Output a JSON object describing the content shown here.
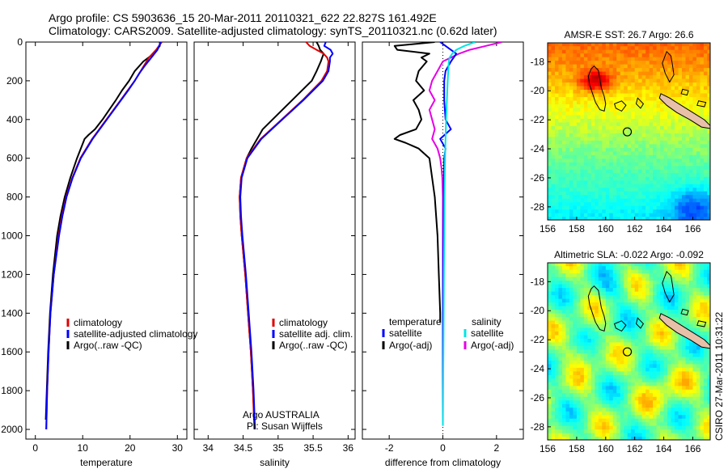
{
  "header": {
    "title_line1": "Argo profile: CS 5903636_15 20-Mar-2011 20110321_622 22.827S 161.492E",
    "title_line2": "Climatology: CARS2009. Satellite-adjusted climatology: synTS_20110321.nc (0.62d later)"
  },
  "side_label": "CSIRO 27-Mar-2011 10:31:22",
  "colors": {
    "climatology": "#dd0000",
    "satellite": "#0000ff",
    "argo": "#000000",
    "sat_salinity": "#00e5e5",
    "argo_salinity": "#e600e6",
    "island_fill": "#e8c0a8"
  },
  "chart_data": [
    {
      "type": "line",
      "name": "temperature",
      "xlabel": "temperature",
      "xlim": [
        -2,
        32
      ],
      "ylim": [
        2050,
        0
      ],
      "xticks": [
        0,
        10,
        20,
        30
      ],
      "yticks": [
        0,
        200,
        400,
        600,
        800,
        1000,
        1200,
        1400,
        1600,
        1800,
        2000
      ],
      "legend": [
        "climatology",
        "satellite-adjusted climatology",
        "Argo(..raw -QC)"
      ],
      "legend_position": "lower-right",
      "series": [
        {
          "name": "climatology",
          "color": "#dd0000",
          "y": [
            0,
            40,
            80,
            120,
            160,
            200,
            250,
            300,
            350,
            400,
            450,
            500,
            600,
            700,
            800,
            900,
            1000,
            1200,
            1400,
            1600,
            1800,
            2000
          ],
          "x": [
            26.7,
            25.5,
            24.0,
            23.0,
            22.0,
            21.0,
            19.5,
            18.0,
            16.5,
            15.0,
            13.5,
            12.0,
            9.5,
            7.8,
            6.5,
            5.6,
            4.9,
            3.9,
            3.2,
            2.8,
            2.5,
            2.3
          ]
        },
        {
          "name": "satellite-adjusted climatology",
          "color": "#0000ff",
          "y": [
            0,
            40,
            80,
            120,
            160,
            200,
            250,
            300,
            350,
            400,
            450,
            500,
            600,
            700,
            800,
            900,
            1000,
            1200,
            1400,
            1600,
            1800,
            2000
          ],
          "x": [
            26.5,
            25.8,
            24.5,
            23.2,
            22.0,
            21.0,
            19.6,
            18.1,
            16.6,
            15.1,
            13.6,
            12.1,
            9.6,
            7.9,
            6.6,
            5.7,
            5.0,
            3.9,
            3.2,
            2.8,
            2.5,
            2.3
          ]
        },
        {
          "name": "Argo(..raw -QC)",
          "color": "#000000",
          "y": [
            0,
            20,
            60,
            100,
            150,
            200,
            250,
            300,
            350,
            400,
            450,
            480,
            500,
            550,
            600,
            700,
            800,
            900,
            1000,
            1200,
            1400,
            1600,
            1800,
            1950
          ],
          "x": [
            26.3,
            26.3,
            25.0,
            22.8,
            21.0,
            19.8,
            18.3,
            17.0,
            15.6,
            14.2,
            12.6,
            11.2,
            10.4,
            9.6,
            8.8,
            7.4,
            6.2,
            5.3,
            4.6,
            3.7,
            3.1,
            2.7,
            2.4,
            2.2
          ]
        }
      ]
    },
    {
      "type": "line",
      "name": "salinity",
      "xlabel": "salinity",
      "xlim": [
        33.8,
        36.1
      ],
      "ylim": [
        2050,
        0
      ],
      "xticks": [
        34,
        34.5,
        35,
        35.5,
        36
      ],
      "legend": [
        "climatology",
        "satellite adj. clim.",
        "Argo(..raw -QC)"
      ],
      "legend_position": "lower-right",
      "annotation": [
        "Argo AUSTRALIA",
        "PI: Susan Wijffels"
      ],
      "series": [
        {
          "name": "climatology",
          "color": "#dd0000",
          "y": [
            0,
            20,
            40,
            60,
            80,
            100,
            150,
            200,
            300,
            400,
            500,
            600,
            700,
            800,
            900,
            1000,
            1200,
            1400,
            1600,
            1800,
            2000
          ],
          "x": [
            35.4,
            35.45,
            35.55,
            35.65,
            35.7,
            35.72,
            35.7,
            35.62,
            35.35,
            35.05,
            34.75,
            34.55,
            34.47,
            34.45,
            34.46,
            34.48,
            34.53,
            34.57,
            34.61,
            34.64,
            34.66
          ]
        },
        {
          "name": "satellite adj. clim.",
          "color": "#0000ff",
          "y": [
            0,
            20,
            40,
            60,
            80,
            100,
            150,
            200,
            300,
            400,
            500,
            600,
            700,
            800,
            900,
            1000,
            1200,
            1400,
            1600,
            1800,
            2000
          ],
          "x": [
            35.68,
            35.66,
            35.75,
            35.78,
            35.74,
            35.74,
            35.72,
            35.64,
            35.36,
            35.06,
            34.76,
            34.56,
            34.48,
            34.46,
            34.47,
            34.49,
            34.54,
            34.58,
            34.62,
            34.65,
            34.67
          ]
        },
        {
          "name": "Argo(..raw -QC)",
          "color": "#000000",
          "y": [
            0,
            20,
            40,
            60,
            80,
            100,
            150,
            200,
            300,
            400,
            450,
            500,
            550,
            600,
            700,
            800,
            900,
            1000,
            1200,
            1400,
            1600,
            1800,
            1950
          ],
          "x": [
            35.55,
            35.58,
            35.6,
            35.65,
            35.63,
            35.61,
            35.55,
            35.48,
            35.2,
            34.92,
            34.78,
            34.7,
            34.62,
            34.55,
            34.47,
            34.45,
            34.46,
            34.48,
            34.53,
            34.57,
            34.61,
            34.64,
            34.66
          ]
        }
      ]
    },
    {
      "type": "line",
      "name": "difference",
      "xlabel": "difference from climatology",
      "xlim": [
        -3,
        3
      ],
      "ylim": [
        2050,
        0
      ],
      "xticks": [
        -2,
        0,
        2
      ],
      "legend": [
        "temperature",
        "satellite",
        "Argo(-adj)",
        "salinity",
        "satellite",
        "Argo(-adj)"
      ],
      "legend_position": "lower-center",
      "series": [
        {
          "name": "temperature satellite",
          "color": "#0000ff",
          "y": [
            0,
            30,
            60,
            100,
            150,
            200,
            300,
            400,
            450,
            500,
            550,
            600,
            700,
            800,
            1000,
            1200,
            1400,
            1600,
            1800,
            1980
          ],
          "x": [
            -0.1,
            0.2,
            0.5,
            0.3,
            0.1,
            0.05,
            0.05,
            0.1,
            0.3,
            -0.1,
            0.1,
            0.05,
            0.04,
            0.03,
            0.02,
            0.01,
            0.0,
            0.0,
            0.0,
            0.0
          ]
        },
        {
          "name": "temperature Argo(-adj)",
          "color": "#000000",
          "y": [
            0,
            20,
            40,
            60,
            80,
            100,
            150,
            200,
            250,
            300,
            350,
            400,
            450,
            480,
            500,
            520,
            550,
            600,
            700,
            800,
            900,
            1000,
            1200,
            1400,
            1450
          ],
          "x": [
            -0.3,
            -1.8,
            -1.7,
            -0.5,
            -0.8,
            -0.6,
            -0.9,
            -1.0,
            -0.7,
            -1.1,
            -0.9,
            -0.8,
            -1.0,
            -1.6,
            -1.8,
            -1.4,
            -0.9,
            -0.5,
            -0.4,
            -0.3,
            -0.25,
            -0.2,
            -0.15,
            -0.1,
            -0.1
          ]
        },
        {
          "name": "salinity satellite",
          "color": "#00e5e5",
          "y": [
            0,
            20,
            40,
            60,
            80,
            100,
            150,
            200,
            300,
            400,
            500,
            600,
            800,
            1000,
            1200,
            1400,
            1600,
            1800,
            1980
          ],
          "x": [
            1.2,
            0.8,
            0.5,
            0.35,
            0.25,
            0.22,
            0.2,
            0.18,
            0.15,
            0.12,
            0.1,
            0.08,
            0.06,
            0.05,
            0.04,
            0.03,
            0.02,
            0.01,
            0.0
          ]
        },
        {
          "name": "salinity Argo(-adj)",
          "color": "#e600e6",
          "y": [
            0,
            20,
            40,
            60,
            80,
            100,
            150,
            200,
            250,
            300,
            350,
            400,
            450,
            500,
            550,
            600,
            650,
            700,
            800,
            1000,
            1400,
            1800,
            1980
          ],
          "x": [
            2.2,
            1.6,
            1.0,
            0.6,
            0.3,
            0.0,
            -0.2,
            -0.4,
            -0.5,
            -0.3,
            -0.5,
            -0.4,
            -0.3,
            -0.4,
            -0.2,
            -0.1,
            -0.05,
            -0.02,
            0.0,
            0.0,
            0.0,
            0.0,
            0.0
          ]
        }
      ]
    },
    {
      "type": "heatmap",
      "name": "sst-map",
      "title": "AMSR-E SST: 26.7  Argo: 26.6",
      "xlim": [
        156,
        167.2
      ],
      "ylim": [
        -28.9,
        -16.7
      ],
      "xticks": [
        156,
        158,
        160,
        162,
        164,
        166
      ],
      "yticks": [
        -18,
        -20,
        -22,
        -24,
        -26,
        -28
      ],
      "float_position": {
        "lon": 161.49,
        "lat": -22.83
      }
    },
    {
      "type": "heatmap",
      "name": "sla-map",
      "title": "Altimetric SLA: -0.022  Argo: -0.092",
      "xlim": [
        156,
        167.2
      ],
      "ylim": [
        -28.9,
        -16.7
      ],
      "xticks": [
        156,
        158,
        160,
        162,
        164,
        166
      ],
      "yticks": [
        -18,
        -20,
        -22,
        -24,
        -26,
        -28
      ],
      "float_position": {
        "lon": 161.49,
        "lat": -22.83
      }
    }
  ]
}
